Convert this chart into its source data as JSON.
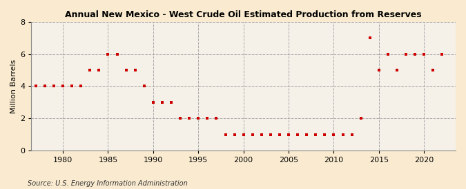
{
  "title": "Annual New Mexico - West Crude Oil Estimated Production from Reserves",
  "ylabel": "Million Barrels",
  "source": "Source: U.S. Energy Information Administration",
  "xlim": [
    1976.5,
    2023.5
  ],
  "ylim": [
    0,
    8
  ],
  "yticks": [
    0,
    2,
    4,
    6,
    8
  ],
  "xticks": [
    1980,
    1985,
    1990,
    1995,
    2000,
    2005,
    2010,
    2015,
    2020
  ],
  "background_color": "#faebd0",
  "plot_bg_color": "#f5f0e8",
  "grid_color": "#aaaaaa",
  "marker_color": "#cc0000",
  "years": [
    1977,
    1978,
    1979,
    1980,
    1981,
    1982,
    1983,
    1984,
    1985,
    1986,
    1987,
    1988,
    1989,
    1990,
    1991,
    1992,
    1993,
    1994,
    1995,
    1996,
    1997,
    1998,
    1999,
    2000,
    2001,
    2002,
    2003,
    2004,
    2005,
    2006,
    2007,
    2008,
    2009,
    2010,
    2011,
    2012,
    2013,
    2014,
    2015,
    2016,
    2017,
    2018,
    2019,
    2020,
    2021,
    2022
  ],
  "values": [
    4,
    4,
    4,
    4,
    4,
    4,
    5,
    5,
    6,
    6,
    5,
    5,
    4,
    3,
    3,
    3,
    2,
    2,
    2,
    2,
    2,
    1,
    1,
    1,
    1,
    1,
    1,
    1,
    1,
    1,
    1,
    1,
    1,
    1,
    1,
    1,
    2,
    7,
    5,
    6,
    5,
    6,
    6,
    6,
    5,
    6
  ]
}
